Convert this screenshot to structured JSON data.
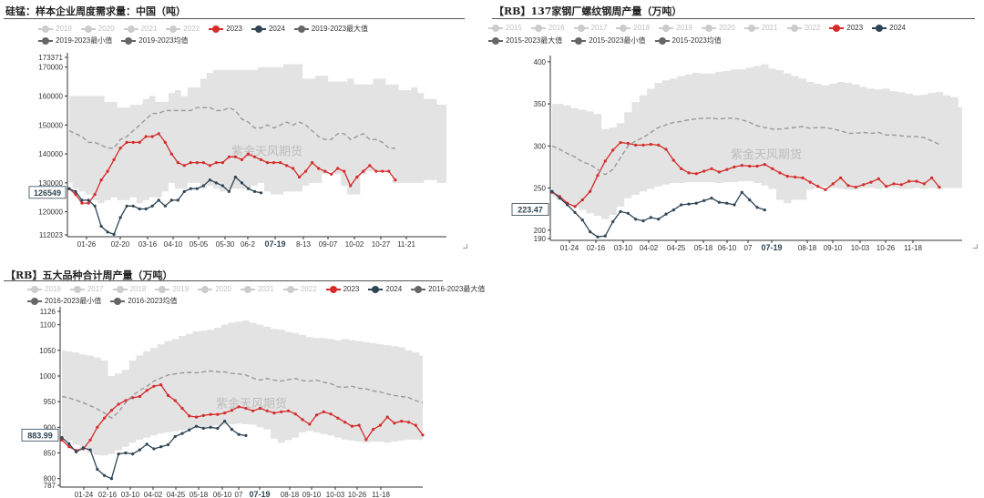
{
  "chart_data": [
    {
      "type": "line",
      "title": "硅锰：样本企业周度需求量：中国（吨）",
      "watermark": "紫金天风期货",
      "legend": [
        {
          "name": "2019",
          "color": "#cccccc"
        },
        {
          "name": "2020",
          "color": "#cccccc"
        },
        {
          "name": "2021",
          "color": "#cccccc"
        },
        {
          "name": "2022",
          "color": "#cccccc"
        },
        {
          "name": "2023",
          "color": "#d62b2b"
        },
        {
          "name": "2024",
          "color": "#2f4554"
        },
        {
          "name": "2019-2023最大值",
          "color": "#666666"
        },
        {
          "name": "2019-2023最小值",
          "color": "#666666"
        },
        {
          "name": "2019-2023均值",
          "color": "#666666"
        }
      ],
      "x_ticks": [
        "01-26",
        "02-20",
        "03-16",
        "04-10",
        "05-05",
        "05-30",
        "06-2",
        "07-19",
        "8-13",
        "09-07",
        "10-02",
        "10-27",
        "11-21"
      ],
      "highlight_tick": "07-19",
      "y_ticks": [
        "173371",
        "170000",
        "160000",
        "150000",
        "140000",
        "130000",
        "120000",
        "112023"
      ],
      "ylim": [
        112023,
        173371
      ],
      "current_value_label": "126549",
      "max": [
        160000,
        160000,
        160000,
        160000,
        160000,
        160000,
        158000,
        158000,
        156000,
        156000,
        157000,
        157000,
        159000,
        160000,
        158000,
        158000,
        161000,
        162000,
        160000,
        163000,
        163000,
        166000,
        168000,
        169000,
        169000,
        169000,
        169000,
        169000,
        169000,
        169000,
        170000,
        170000,
        170000,
        170000,
        171000,
        171000,
        171000,
        166000,
        166000,
        167000,
        167000,
        165000,
        165000,
        165000,
        166000,
        164000,
        164000,
        164000,
        166000,
        166000,
        164000,
        164000,
        162000,
        162000,
        163000,
        161000,
        159000,
        159000,
        157000,
        157000
      ],
      "min": [
        130000,
        128000,
        127000,
        126000,
        124000,
        123000,
        124000,
        125000,
        124000,
        124000,
        125000,
        123000,
        124000,
        125000,
        125000,
        127000,
        130000,
        128000,
        128000,
        130000,
        130000,
        128000,
        129000,
        128000,
        127000,
        128000,
        128000,
        128000,
        128000,
        129000,
        130000,
        127000,
        126000,
        126000,
        127000,
        127000,
        127000,
        129000,
        130000,
        130000,
        133000,
        134000,
        133000,
        129000,
        126000,
        126000,
        133000,
        134000,
        134000,
        134000,
        134000,
        130000,
        130000,
        130000,
        130000,
        130000,
        131000,
        131000,
        130000,
        130000
      ],
      "series": [
        {
          "name": "2023",
          "color": "#d62b2b",
          "values": [
            128000,
            126000,
            123000,
            123000,
            126000,
            131000,
            134000,
            138000,
            142000,
            144000,
            144000,
            144000,
            146000,
            146000,
            147000,
            144000,
            140000,
            137000,
            136000,
            137000,
            137000,
            137000,
            136000,
            137000,
            137000,
            139000,
            139000,
            138000,
            140000,
            139000,
            138000,
            137000,
            137000,
            137000,
            136000,
            135000,
            132000,
            134000,
            137000,
            135000,
            134000,
            133000,
            135000,
            134000,
            129000,
            132000,
            134000,
            136000,
            134000,
            134000,
            134000,
            131000
          ]
        },
        {
          "name": "2024",
          "color": "#2f4554",
          "values": [
            128000,
            127000,
            124000,
            124000,
            122000,
            115000,
            113000,
            112200,
            118000,
            122000,
            122000,
            121000,
            121000,
            122000,
            124000,
            122000,
            124000,
            124000,
            127000,
            128000,
            128000,
            129000,
            131000,
            130000,
            129000,
            127000,
            132000,
            130000,
            128000,
            127000,
            126549
          ]
        },
        {
          "name": "2019-2023均值",
          "color": "#9a9a9a",
          "dashed": true,
          "values": [
            148000,
            147000,
            146000,
            144000,
            144000,
            143000,
            142000,
            142000,
            145000,
            146000,
            148000,
            150000,
            152000,
            154000,
            154000,
            155000,
            155000,
            155000,
            155000,
            155000,
            156000,
            156000,
            156000,
            155000,
            155000,
            156000,
            155000,
            152000,
            151000,
            149000,
            149000,
            150000,
            149000,
            150000,
            151000,
            150000,
            151000,
            150000,
            148000,
            146000,
            145000,
            145000,
            147000,
            147000,
            145000,
            146000,
            147000,
            145000,
            145000,
            144000,
            142000,
            142000
          ]
        }
      ]
    },
    {
      "type": "line",
      "title": "【RB】137家钢厂螺纹钢周产量（万吨）",
      "watermark": "紫金天风期货",
      "legend": [
        {
          "name": "2015",
          "color": "#cccccc"
        },
        {
          "name": "2016",
          "color": "#cccccc"
        },
        {
          "name": "2017",
          "color": "#cccccc"
        },
        {
          "name": "2018",
          "color": "#cccccc"
        },
        {
          "name": "2019",
          "color": "#cccccc"
        },
        {
          "name": "2020",
          "color": "#cccccc"
        },
        {
          "name": "2021",
          "color": "#cccccc"
        },
        {
          "name": "2022",
          "color": "#cccccc"
        },
        {
          "name": "2023",
          "color": "#d62b2b"
        },
        {
          "name": "2024",
          "color": "#2f4554"
        },
        {
          "name": "2015-2023最大值",
          "color": "#666666"
        },
        {
          "name": "2015-2023最小值",
          "color": "#666666"
        },
        {
          "name": "2015-2023均值",
          "color": "#666666"
        }
      ],
      "x_ticks": [
        "01-24",
        "02-16",
        "03-10",
        "04-02",
        "04-25",
        "05-18",
        "06-10",
        "07",
        "07-19",
        "08-18",
        "09-10",
        "10-03",
        "10-26",
        "11-18"
      ],
      "highlight_tick": "07-19",
      "y_ticks": [
        "400",
        "350",
        "300",
        "250",
        "200",
        "190"
      ],
      "ylim": [
        190,
        402
      ],
      "current_value_label": "223.47",
      "max": [
        350,
        350,
        348,
        345,
        343,
        341,
        338,
        320,
        322,
        327,
        340,
        352,
        360,
        368,
        375,
        378,
        380,
        383,
        385,
        387,
        386,
        386,
        388,
        389,
        391,
        391,
        393,
        395,
        397,
        392,
        390,
        386,
        383,
        380,
        376,
        374,
        372,
        374,
        376,
        375,
        373,
        370,
        368,
        367,
        368,
        365,
        364,
        362,
        360,
        361,
        363,
        364,
        360,
        358,
        346
      ],
      "min": [
        240,
        236,
        232,
        228,
        224,
        220,
        217,
        213,
        218,
        228,
        238,
        242,
        246,
        249,
        252,
        254,
        256,
        256,
        257,
        257,
        257,
        257,
        256,
        257,
        257,
        258,
        258,
        256,
        253,
        249,
        236,
        232,
        236,
        236,
        248,
        250,
        252,
        250,
        249,
        248,
        248,
        250,
        250,
        249,
        250,
        250,
        249,
        249,
        250,
        249,
        250,
        249,
        250,
        250,
        250
      ],
      "series": [
        {
          "name": "2023",
          "color": "#d62b2b",
          "values": [
            245,
            240,
            232,
            228,
            236,
            246,
            265,
            282,
            295,
            304,
            303,
            301,
            301,
            302,
            301,
            296,
            283,
            273,
            268,
            267,
            270,
            273,
            269,
            272,
            275,
            277,
            276,
            276,
            278,
            273,
            268,
            264,
            263,
            262,
            257,
            252,
            248,
            255,
            262,
            253,
            251,
            254,
            257,
            261,
            252,
            255,
            254,
            258,
            258,
            255,
            262,
            251
          ]
        },
        {
          "name": "2024",
          "color": "#2f4554",
          "values": [
            246,
            238,
            230,
            221,
            212,
            198,
            192,
            193,
            210,
            222,
            220,
            213,
            211,
            215,
            213,
            219,
            224,
            230,
            231,
            232,
            235,
            238,
            233,
            232,
            230,
            245,
            236,
            227,
            224
          ]
        },
        {
          "name": "2015-2023均值",
          "color": "#9a9a9a",
          "dashed": true,
          "values": [
            300,
            296,
            291,
            287,
            281,
            278,
            272,
            266,
            272,
            286,
            300,
            306,
            310,
            316,
            322,
            325,
            328,
            329,
            331,
            332,
            333,
            333,
            332,
            333,
            333,
            331,
            328,
            324,
            322,
            320,
            320,
            321,
            322,
            323,
            321,
            322,
            322,
            320,
            318,
            315,
            315,
            316,
            315,
            316,
            313,
            313,
            312,
            311,
            311,
            310,
            306,
            302
          ]
        }
      ]
    },
    {
      "type": "line",
      "title": "【RB】五大品种合计周产量（万吨）",
      "watermark": "紫金天风期货",
      "legend": [
        {
          "name": "2016",
          "color": "#cccccc"
        },
        {
          "name": "2017",
          "color": "#cccccc"
        },
        {
          "name": "2018",
          "color": "#cccccc"
        },
        {
          "name": "2019",
          "color": "#cccccc"
        },
        {
          "name": "2020",
          "color": "#cccccc"
        },
        {
          "name": "2021",
          "color": "#cccccc"
        },
        {
          "name": "2022",
          "color": "#cccccc"
        },
        {
          "name": "2023",
          "color": "#d62b2b"
        },
        {
          "name": "2024",
          "color": "#2f4554"
        },
        {
          "name": "2016-2023最大值",
          "color": "#666666"
        },
        {
          "name": "2016-2023最小值",
          "color": "#666666"
        },
        {
          "name": "2016-2023均值",
          "color": "#666666"
        }
      ],
      "x_ticks": [
        "01-24",
        "02-16",
        "03-10",
        "04-02",
        "04-25",
        "05-18",
        "06-10",
        "07",
        "07-19",
        "08-18",
        "09-10",
        "10-03",
        "10-26",
        "11-18"
      ],
      "highlight_tick": "07-19",
      "y_ticks": [
        "1126",
        "1100",
        "1050",
        "1000",
        "950",
        "900",
        "850",
        "800",
        "787"
      ],
      "ylim": [
        787,
        1126
      ],
      "current_value_label": "883.99",
      "max": [
        1050,
        1048,
        1046,
        1042,
        1040,
        1036,
        1030,
        1000,
        1005,
        1012,
        1030,
        1040,
        1048,
        1055,
        1062,
        1068,
        1072,
        1078,
        1082,
        1087,
        1088,
        1090,
        1094,
        1100,
        1104,
        1106,
        1108,
        1104,
        1100,
        1096,
        1092,
        1090,
        1086,
        1084,
        1080,
        1076,
        1074,
        1074,
        1072,
        1070,
        1072,
        1070,
        1068,
        1066,
        1064,
        1062,
        1060,
        1058,
        1056,
        1050,
        1046,
        1040
      ],
      "min": [
        880,
        874,
        866,
        858,
        850,
        846,
        845,
        848,
        855,
        862,
        870,
        876,
        880,
        884,
        888,
        890,
        892,
        894,
        896,
        898,
        900,
        902,
        904,
        905,
        906,
        907,
        906,
        905,
        900,
        896,
        878,
        870,
        875,
        880,
        890,
        893,
        890,
        887,
        884,
        880,
        876,
        874,
        872,
        870,
        872,
        872,
        870,
        872,
        874,
        876,
        876,
        875
      ],
      "series": [
        {
          "name": "2023",
          "color": "#d62b2b",
          "values": [
            875,
            862,
            855,
            858,
            875,
            900,
            918,
            933,
            945,
            952,
            958,
            960,
            972,
            980,
            983,
            962,
            952,
            937,
            922,
            920,
            923,
            925,
            925,
            928,
            933,
            940,
            937,
            932,
            937,
            932,
            928,
            930,
            932,
            926,
            915,
            906,
            924,
            930,
            926,
            918,
            910,
            902,
            904,
            876,
            896,
            904,
            920,
            908,
            912,
            910,
            904,
            885
          ]
        },
        {
          "name": "2024",
          "color": "#2f4554",
          "values": [
            880,
            868,
            852,
            860,
            856,
            818,
            806,
            800,
            848,
            850,
            848,
            856,
            867,
            858,
            862,
            866,
            882,
            888,
            895,
            902,
            898,
            900,
            898,
            912,
            896,
            886,
            883.99
          ]
        },
        {
          "name": "2016-2023均值",
          "color": "#9a9a9a",
          "dashed": true,
          "values": [
            960,
            957,
            953,
            948,
            942,
            936,
            928,
            918,
            930,
            948,
            962,
            972,
            980,
            990,
            996,
            1002,
            1004,
            1006,
            1007,
            1006,
            1008,
            1010,
            1008,
            1008,
            1005,
            1004,
            1002,
            996,
            992,
            995,
            992,
            990,
            993,
            995,
            991,
            990,
            992,
            988,
            985,
            979,
            978,
            980,
            976,
            975,
            971,
            969,
            965,
            962,
            960,
            958,
            952,
            948
          ]
        }
      ]
    }
  ]
}
